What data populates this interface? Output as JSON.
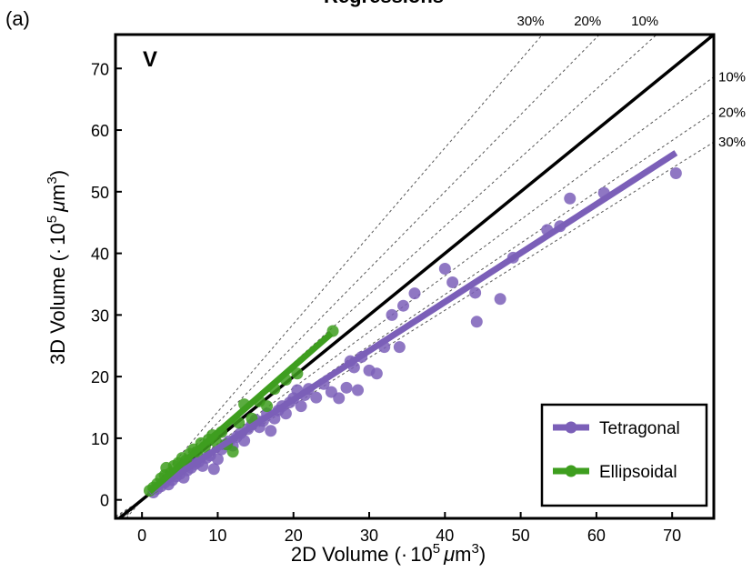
{
  "panel_label": "(a)",
  "chart_data": {
    "type": "scatter",
    "title": "Regressions",
    "panel_letter": "V",
    "xlabel": {
      "prefix": "2D Volume (",
      "dot": "·",
      "base": "10",
      "exp": "5",
      "mu": "μ",
      "unit": "m",
      "uexp": "3",
      "close": ")"
    },
    "ylabel": {
      "prefix": "3D Volume (",
      "dot": "·",
      "base": "10",
      "exp": "5",
      "mu": "μ",
      "unit": "m",
      "uexp": "3",
      "close": ")"
    },
    "xlim": [
      -3.5,
      75.5
    ],
    "ylim": [
      -3.0,
      75.5
    ],
    "xticks": [
      0,
      10,
      20,
      30,
      40,
      50,
      60,
      70
    ],
    "yticks": [
      0,
      10,
      20,
      30,
      40,
      50,
      60,
      70
    ],
    "grid": false,
    "legend_position": "bottom-right",
    "identity_line": {
      "slope": 1.0,
      "color": "#000000"
    },
    "reference_lines": [
      {
        "label": "30%",
        "slope": 1.428,
        "side": "top"
      },
      {
        "label": "20%",
        "slope": 1.25,
        "side": "top"
      },
      {
        "label": "10%",
        "slope": 1.111,
        "side": "top"
      },
      {
        "label": "10%",
        "slope": 0.909,
        "side": "right"
      },
      {
        "label": "20%",
        "slope": 0.833,
        "side": "right"
      },
      {
        "label": "30%",
        "slope": 0.769,
        "side": "right"
      }
    ],
    "series": [
      {
        "name": "Tetragonal",
        "color": "#7b5fb8",
        "fit": {
          "x": [
            1,
            70.5
          ],
          "y": [
            1.2,
            56.3
          ]
        },
        "points": [
          [
            1.5,
            1.2
          ],
          [
            2,
            1.8
          ],
          [
            2.5,
            2.2
          ],
          [
            3,
            2.8
          ],
          [
            3.5,
            2.5
          ],
          [
            4,
            3.2
          ],
          [
            4.5,
            3.8
          ],
          [
            5,
            4.2
          ],
          [
            5.5,
            3.6
          ],
          [
            6,
            4.8
          ],
          [
            6.5,
            5.2
          ],
          [
            7,
            5.8
          ],
          [
            7.5,
            6.2
          ],
          [
            8,
            5.5
          ],
          [
            8.5,
            6.8
          ],
          [
            9,
            7.2
          ],
          [
            9.5,
            5.0
          ],
          [
            10,
            6.6
          ],
          [
            10.5,
            8.2
          ],
          [
            11,
            9.0
          ],
          [
            11.5,
            9.5
          ],
          [
            12,
            8.8
          ],
          [
            12.5,
            10.2
          ],
          [
            13,
            10.8
          ],
          [
            13.5,
            9.6
          ],
          [
            14,
            11.5
          ],
          [
            14.5,
            12.2
          ],
          [
            15,
            13.0
          ],
          [
            15.5,
            11.8
          ],
          [
            16,
            12.8
          ],
          [
            16.5,
            14.0
          ],
          [
            17,
            11.2
          ],
          [
            17.5,
            13.2
          ],
          [
            18,
            14.5
          ],
          [
            18.5,
            15.2
          ],
          [
            19,
            14.0
          ],
          [
            19.5,
            15.8
          ],
          [
            20,
            16.5
          ],
          [
            20.5,
            17.8
          ],
          [
            21,
            15.2
          ],
          [
            21.5,
            17.0
          ],
          [
            22,
            18.0
          ],
          [
            23,
            16.6
          ],
          [
            24,
            18.8
          ],
          [
            25,
            17.5
          ],
          [
            26,
            16.5
          ],
          [
            27,
            18.2
          ],
          [
            27.5,
            22.5
          ],
          [
            28,
            21.5
          ],
          [
            28.5,
            17.8
          ],
          [
            29,
            23.2
          ],
          [
            30,
            21.0
          ],
          [
            31,
            20.5
          ],
          [
            32,
            24.8
          ],
          [
            33,
            30.0
          ],
          [
            34,
            24.8
          ],
          [
            34.5,
            31.5
          ],
          [
            36,
            33.5
          ],
          [
            40,
            37.5
          ],
          [
            41,
            35.3
          ],
          [
            44,
            33.6
          ],
          [
            44.2,
            28.9
          ],
          [
            47.3,
            32.6
          ],
          [
            49,
            39.3
          ],
          [
            53.5,
            43.8
          ],
          [
            55.2,
            44.4
          ],
          [
            56.5,
            48.9
          ],
          [
            61,
            49.8
          ],
          [
            70.5,
            53.0
          ]
        ]
      },
      {
        "name": "Ellipsoidal",
        "color": "#3e9e1f",
        "fit": {
          "x": [
            1,
            25
          ],
          "y": [
            1.3,
            27.0
          ]
        },
        "points": [
          [
            1.0,
            1.5
          ],
          [
            1.5,
            2.0
          ],
          [
            2.0,
            2.6
          ],
          [
            2.5,
            3.5
          ],
          [
            3.0,
            4.0
          ],
          [
            3.2,
            5.2
          ],
          [
            3.8,
            4.4
          ],
          [
            4.2,
            5.5
          ],
          [
            4.8,
            6.0
          ],
          [
            5.3,
            6.8
          ],
          [
            5.8,
            6.4
          ],
          [
            6.3,
            7.5
          ],
          [
            6.8,
            8.2
          ],
          [
            7.3,
            7.8
          ],
          [
            7.8,
            9.2
          ],
          [
            8.3,
            8.6
          ],
          [
            8.8,
            9.8
          ],
          [
            9.3,
            10.5
          ],
          [
            9.8,
            9.4
          ],
          [
            10.5,
            11.0
          ],
          [
            11.2,
            9.0
          ],
          [
            12.0,
            7.8
          ],
          [
            12.8,
            12.5
          ],
          [
            13.5,
            15.5
          ],
          [
            14.5,
            13.2
          ],
          [
            15.5,
            16.0
          ],
          [
            16.5,
            15.2
          ],
          [
            17.5,
            18.0
          ],
          [
            19,
            19.5
          ],
          [
            20.5,
            20.5
          ],
          [
            25.2,
            27.4
          ]
        ]
      }
    ]
  }
}
